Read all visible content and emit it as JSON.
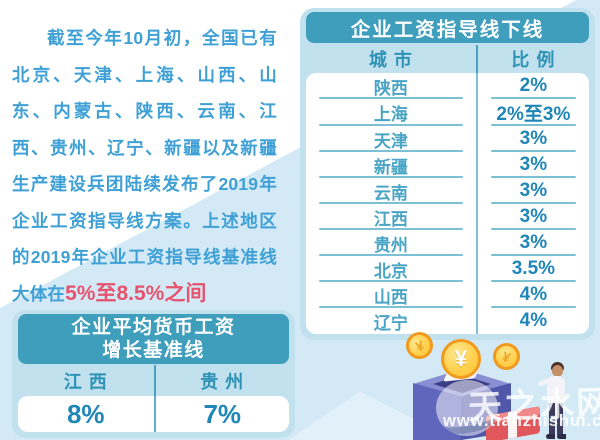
{
  "chart_data": [
    {
      "type": "table",
      "title": "企业工资指导线下线",
      "columns": [
        "城市",
        "比例"
      ],
      "rows": [
        [
          "陕西",
          "2%"
        ],
        [
          "上海",
          "2%至3%"
        ],
        [
          "天津",
          "3%"
        ],
        [
          "新疆",
          "3%"
        ],
        [
          "云南",
          "3%"
        ],
        [
          "江西",
          "3%"
        ],
        [
          "贵州",
          "3%"
        ],
        [
          "北京",
          "3.5%"
        ],
        [
          "山西",
          "4%"
        ],
        [
          "辽宁",
          "4%"
        ]
      ]
    },
    {
      "type": "table",
      "title": "企业平均货币工资增长基准线",
      "columns": [
        "江西",
        "贵州"
      ],
      "rows": [
        [
          "8%",
          "7%"
        ]
      ]
    }
  ],
  "intro": {
    "text_before": "截至今年10月初，全国已有北京、天津、上海、山西、山东、内蒙古、陕西、云南、江西、贵州、辽宁、新疆以及新疆生产建设兵团陆续发布了2019年企业工资指导线方案。上述地区的2019年企业工资指导线基准线大体在",
    "highlight": "5%至8.5%之间"
  },
  "tables_display": {
    "lower": {
      "title": "企业工资指导线下线",
      "col1": "城 市",
      "col2": "比 例"
    },
    "baseline": {
      "title_line1": "企业平均货币工资",
      "title_line2": "增长基准线",
      "col1": "江 西",
      "col2": "贵 州"
    }
  },
  "illustration": {
    "coin_symbol": "¥"
  },
  "watermark": {
    "logo_text": "天之水网",
    "url": "www.tianzhishui.com"
  },
  "colors": {
    "teal_header": "#3f9ebc",
    "panel_light_blue": "#c2e1ef",
    "header_text_teal": "#2e93b6",
    "intro_blue": "#3fa0d6",
    "value_blue": "#1f86b8",
    "city_blue": "#4aa5c5",
    "highlight_red": "#e5536f",
    "background_diagonal": "#d3e9f5",
    "row_line": "#7cc0d6",
    "coin_gold": "#ffd14e"
  }
}
